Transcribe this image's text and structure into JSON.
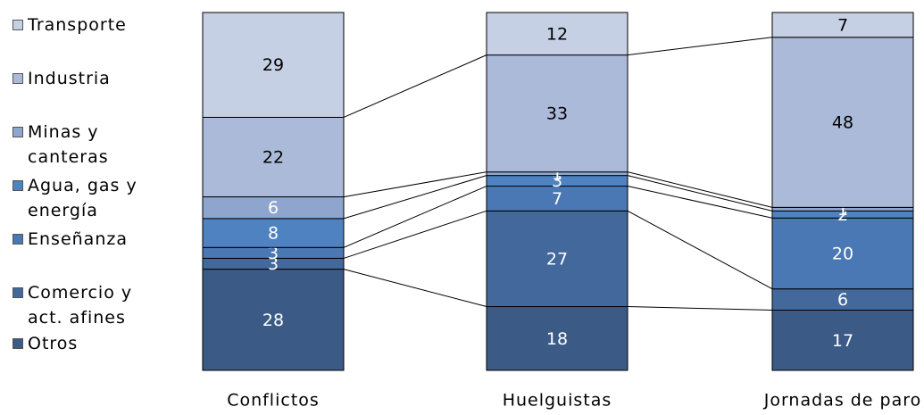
{
  "chart_data": {
    "type": "bar",
    "stacked": "percent",
    "categories": [
      "Conflictos",
      "Huelguistas",
      "Jornadas de paro"
    ],
    "series": [
      {
        "name": "Otros",
        "color": "#3b5a86",
        "values": [
          28,
          18,
          17
        ]
      },
      {
        "name": "Comercio y act. afines",
        "color": "#42689c",
        "values": [
          3,
          27,
          6
        ]
      },
      {
        "name": "Enseñanza",
        "color": "#4a78b4",
        "values": [
          3,
          7,
          20
        ]
      },
      {
        "name": "Agua, gas y energía",
        "color": "#4f82c0",
        "values": [
          8,
          3,
          2
        ]
      },
      {
        "name": "Minas y canteras",
        "color": "#8ea5ce",
        "values": [
          6,
          1,
          1
        ]
      },
      {
        "name": "Industria",
        "color": "#abbad9",
        "values": [
          22,
          33,
          48
        ]
      },
      {
        "name": "Transporte",
        "color": "#c6d0e4",
        "values": [
          29,
          12,
          7
        ]
      }
    ]
  }
}
